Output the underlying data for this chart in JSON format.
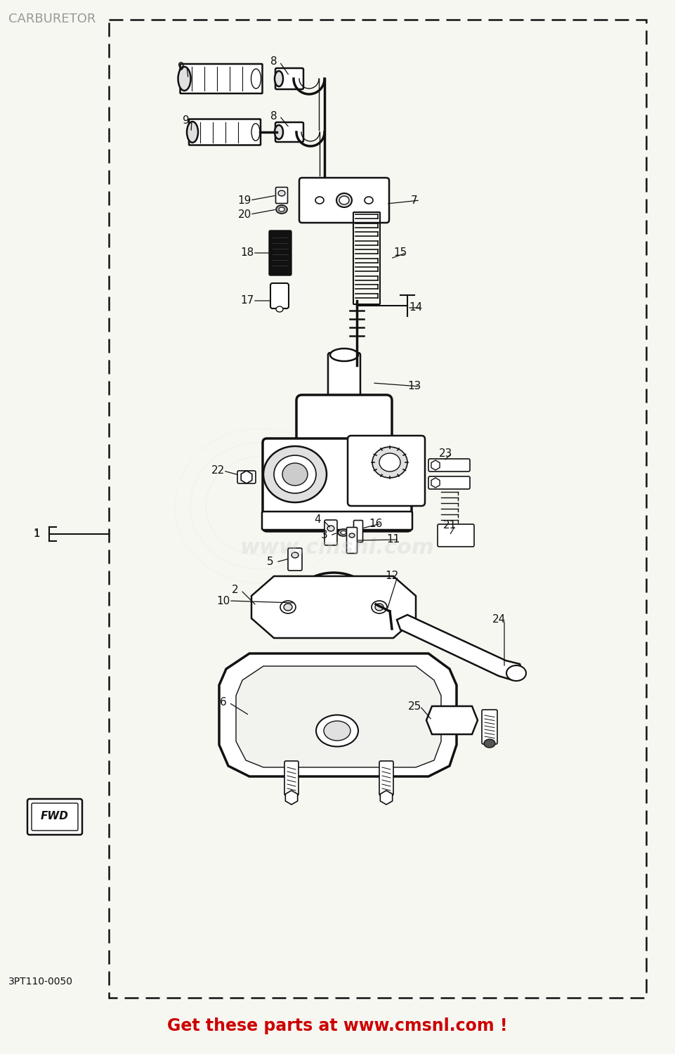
{
  "title": "CARBURETOR",
  "part_number": "3PT110-0050",
  "footer_text": "Get these parts at www.cmsnl.com !",
  "footer_color": "#cc0000",
  "title_color": "#999999",
  "bg_color": "#f7f7f2",
  "border_color": "#000000",
  "watermark_url": "www.cmsnl.com",
  "fig_w": 9.61,
  "fig_h": 15.0,
  "dpi": 100
}
